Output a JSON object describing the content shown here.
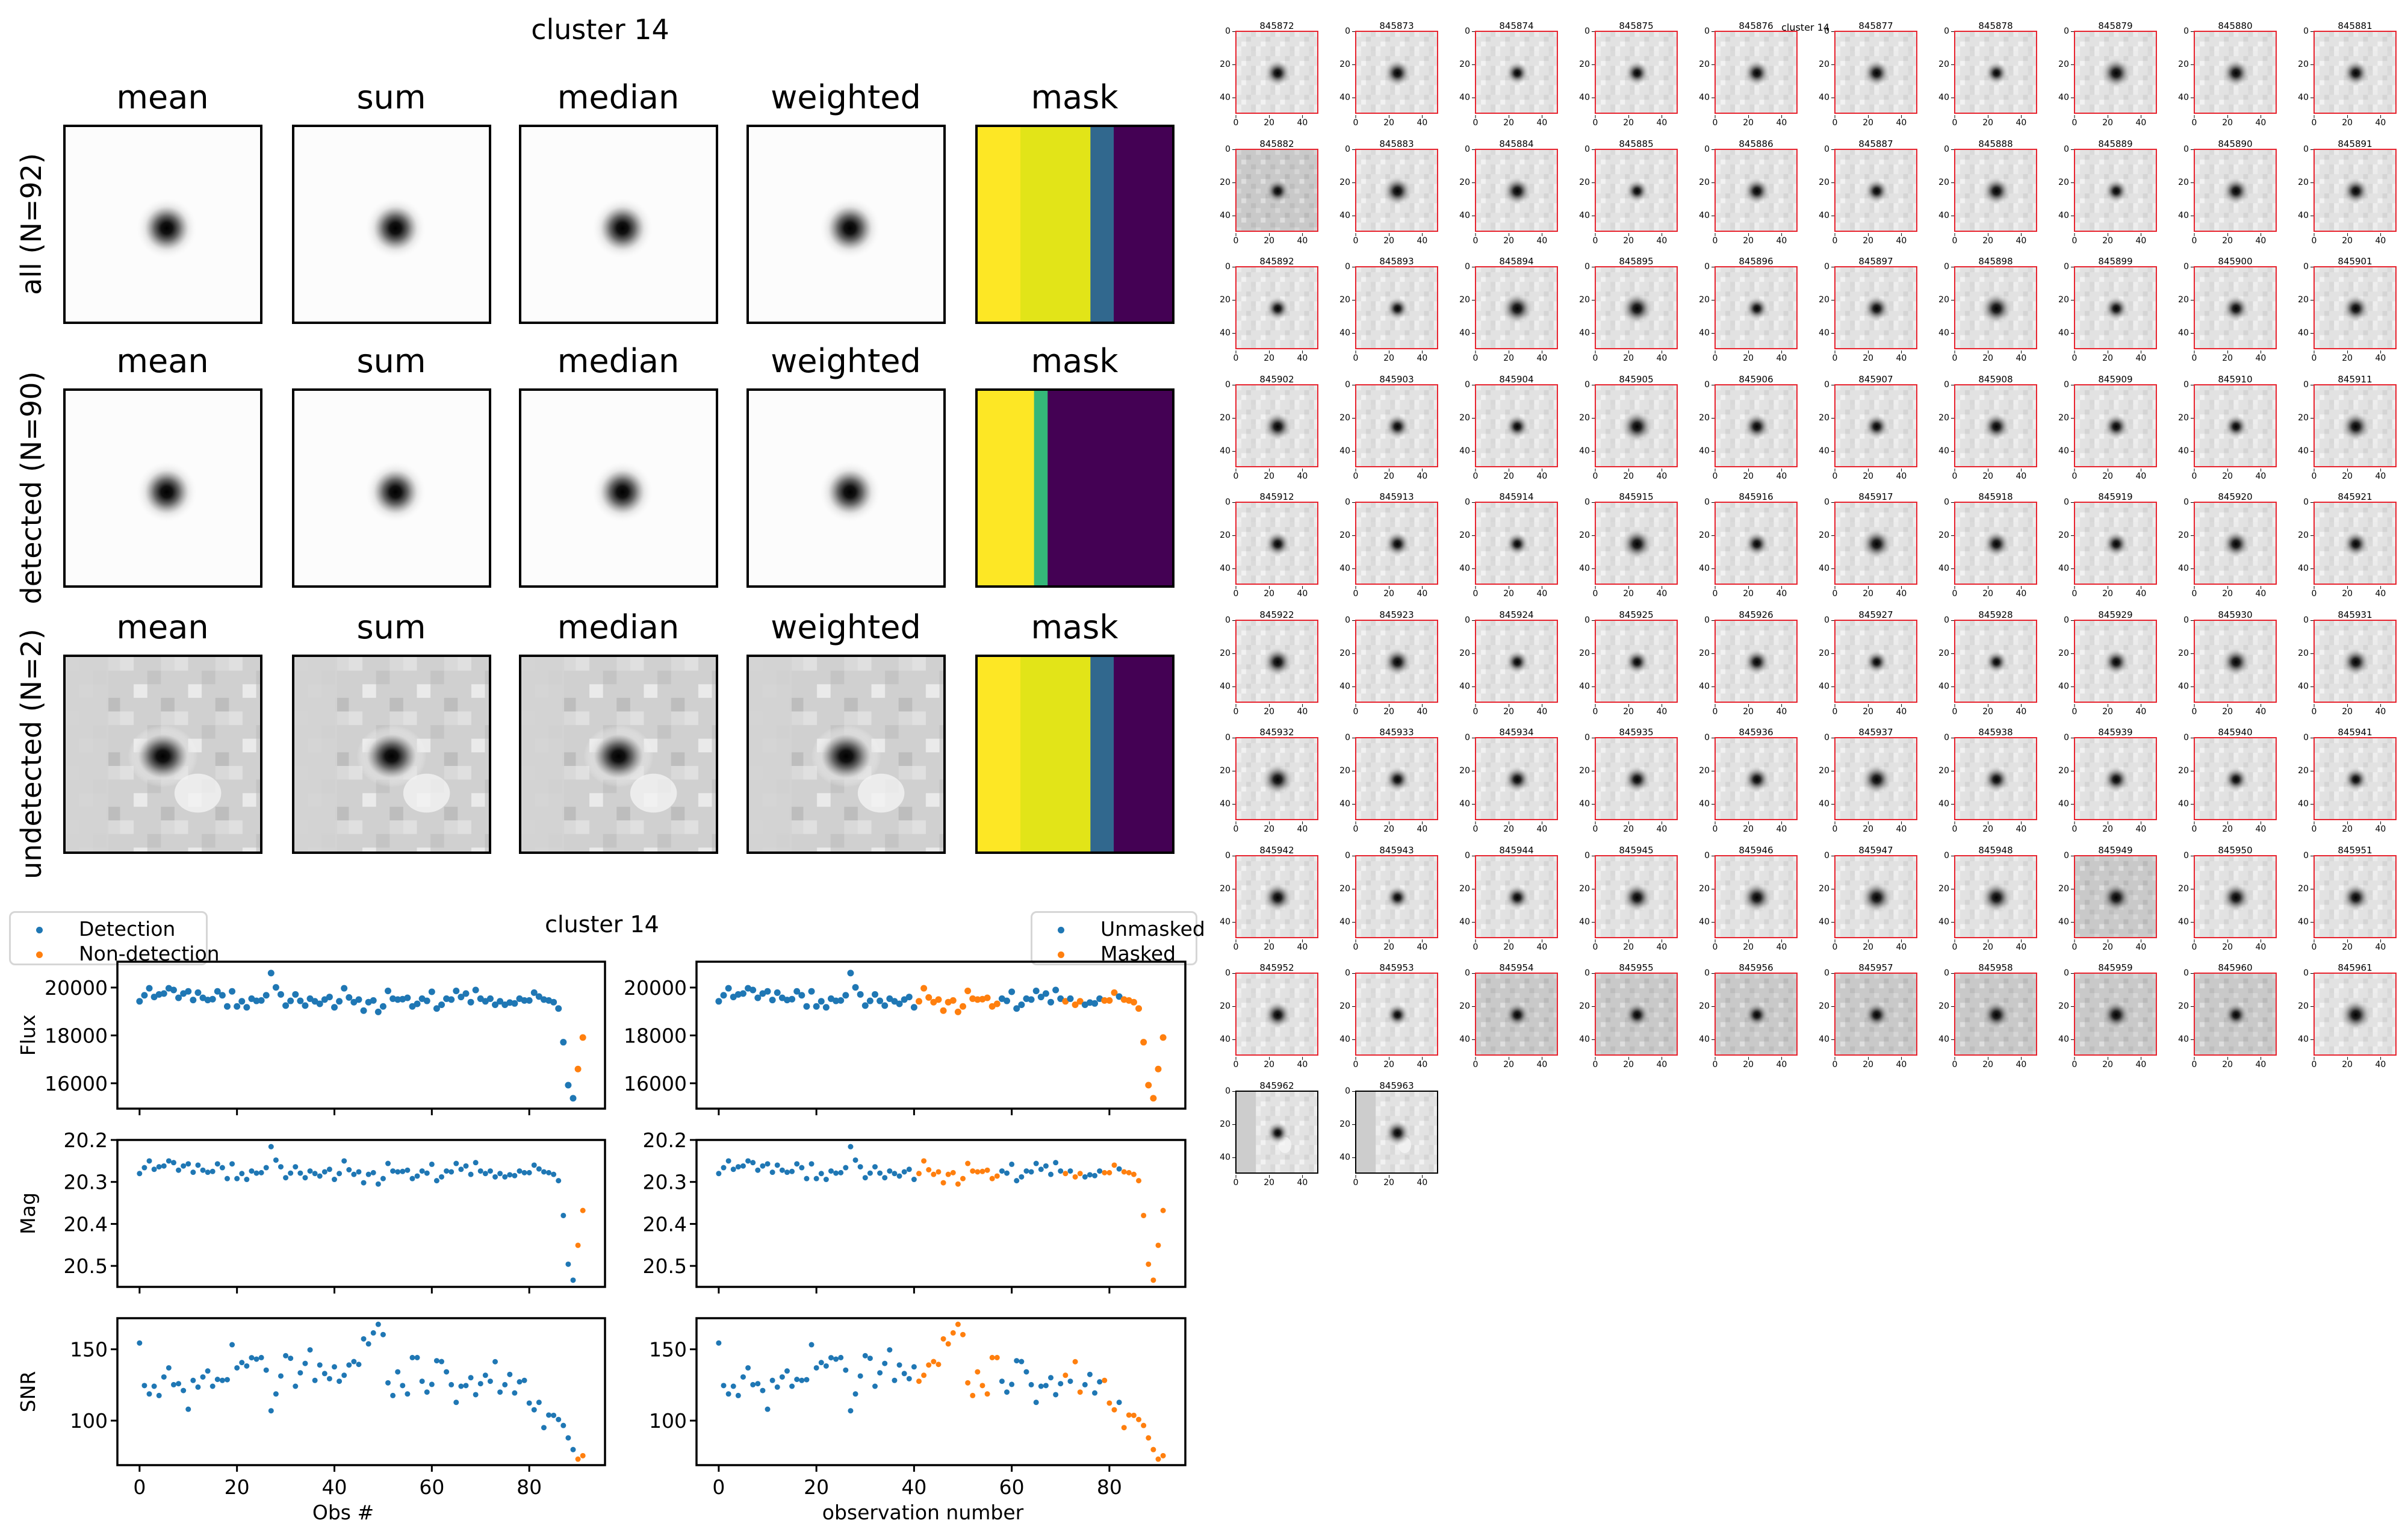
{
  "figure": {
    "left_title": "cluster 14",
    "thumb_suptitle": "cluster 14",
    "lightcurve_title": "cluster 14"
  },
  "stack_grid": {
    "columns": [
      "mean",
      "sum",
      "median",
      "weighted",
      "mask"
    ],
    "rows": [
      {
        "label": "all (N=92)",
        "style": "clean",
        "mask_bands": [
          {
            "to": 0.22,
            "color": "#fde725"
          },
          {
            "to": 0.58,
            "color": "#e2e418"
          },
          {
            "to": 0.7,
            "color": "#31688e"
          },
          {
            "to": 1.0,
            "color": "#440154"
          }
        ]
      },
      {
        "label": "detected (N=90)",
        "style": "clean",
        "mask_bands": [
          {
            "to": 0.29,
            "color": "#fde725"
          },
          {
            "to": 0.36,
            "color": "#35b779"
          },
          {
            "to": 1.0,
            "color": "#440154"
          }
        ]
      },
      {
        "label": "undetected (N=2)",
        "style": "noisy",
        "mask_bands": [
          {
            "to": 0.22,
            "color": "#fde725"
          },
          {
            "to": 0.58,
            "color": "#e2e418"
          },
          {
            "to": 0.7,
            "color": "#31688e"
          },
          {
            "to": 1.0,
            "color": "#440154"
          }
        ]
      }
    ]
  },
  "legends": {
    "left": [
      {
        "label": "Detection",
        "color": "#1f77b4"
      },
      {
        "label": "Non-detection",
        "color": "#ff7f0e"
      }
    ],
    "right": [
      {
        "label": "Unmasked",
        "color": "#1f77b4"
      },
      {
        "label": "Masked",
        "color": "#ff7f0e"
      }
    ]
  },
  "colors": {
    "blue": "#1f77b4",
    "orange": "#ff7f0e",
    "thumb_border": "#e8242f",
    "thumb_border_undetected": "#000000"
  },
  "thumbnails": {
    "first_id": 845872,
    "count": 92,
    "per_row": 10,
    "undetected_ids": [
      845962,
      845963
    ],
    "axis_ticks": [
      "0",
      "20",
      "40"
    ]
  },
  "chart_data": [
    {
      "type": "scatter",
      "panel": "flux-left",
      "ylabel": "Flux",
      "xlabel": "",
      "xlim": [
        -4.55,
        95.55
      ],
      "ylim": [
        14940,
        21080
      ],
      "yticks": [
        16000,
        18000,
        20000
      ],
      "xticks": [
        0,
        20,
        40,
        60,
        80
      ],
      "show_xticklabels": false,
      "errorbars": true,
      "color_by": "detection",
      "series_key": "flux"
    },
    {
      "type": "scatter",
      "panel": "mag-left",
      "ylabel": "Mag",
      "xlabel": "",
      "xlim": [
        -4.55,
        95.55
      ],
      "ylim": [
        20.55,
        20.2
      ],
      "inverted_y": true,
      "yticks": [
        20.2,
        20.3,
        20.4,
        20.5
      ],
      "xticks": [
        0,
        20,
        40,
        60,
        80
      ],
      "show_xticklabels": false,
      "color_by": "detection",
      "series_key": "mag"
    },
    {
      "type": "scatter",
      "panel": "snr-left",
      "ylabel": "SNR",
      "xlabel": "Obs #",
      "xlim": [
        -4.55,
        95.55
      ],
      "ylim": [
        68.8,
        171.8
      ],
      "yticks": [
        100,
        150
      ],
      "xticks": [
        0,
        20,
        40,
        60,
        80
      ],
      "show_xticklabels": true,
      "color_by": "detection",
      "series_key": "snr"
    },
    {
      "type": "scatter",
      "panel": "flux-right",
      "ylabel": "",
      "xlabel": "",
      "xlim": [
        -4.55,
        95.55
      ],
      "ylim": [
        14940,
        21080
      ],
      "yticks": [
        16000,
        18000,
        20000
      ],
      "xticks": [
        0,
        20,
        40,
        60,
        80
      ],
      "show_xticklabels": false,
      "errorbars": true,
      "color_by": "mask",
      "series_key": "flux"
    },
    {
      "type": "scatter",
      "panel": "mag-right",
      "ylabel": "",
      "xlabel": "",
      "xlim": [
        -4.55,
        95.55
      ],
      "ylim": [
        20.55,
        20.2
      ],
      "inverted_y": true,
      "yticks": [
        20.2,
        20.3,
        20.4,
        20.5
      ],
      "xticks": [
        0,
        20,
        40,
        60,
        80
      ],
      "show_xticklabels": false,
      "color_by": "mask",
      "series_key": "mag"
    },
    {
      "type": "scatter",
      "panel": "snr-right",
      "ylabel": "",
      "xlabel": "observation number",
      "xlim": [
        -4.55,
        95.55
      ],
      "ylim": [
        68.8,
        171.8
      ],
      "yticks": [
        100,
        150
      ],
      "xticks": [
        0,
        20,
        40,
        60,
        80
      ],
      "show_xticklabels": true,
      "color_by": "mask",
      "series_key": "snr"
    }
  ],
  "observations": {
    "mag": [
      20.28,
      20.266,
      20.25,
      20.27,
      20.264,
      20.262,
      20.25,
      20.254,
      20.272,
      20.262,
      20.257,
      20.277,
      20.26,
      20.272,
      20.277,
      20.275,
      20.257,
      20.266,
      20.292,
      20.257,
      20.292,
      20.28,
      20.294,
      20.274,
      20.279,
      20.278,
      20.266,
      20.216,
      20.248,
      20.264,
      20.29,
      20.279,
      20.264,
      20.279,
      20.29,
      20.274,
      20.28,
      20.286,
      20.276,
      20.27,
      20.294,
      20.28,
      20.25,
      20.271,
      20.282,
      20.276,
      20.302,
      20.282,
      20.278,
      20.305,
      20.292,
      20.256,
      20.274,
      20.276,
      20.275,
      20.272,
      20.292,
      20.286,
      20.274,
      20.279,
      20.258,
      20.297,
      20.288,
      20.274,
      20.276,
      20.256,
      20.27,
      20.262,
      20.282,
      20.254,
      20.274,
      20.28,
      20.274,
      20.288,
      20.28,
      20.288,
      20.283,
      20.285,
      20.274,
      20.278,
      20.278,
      20.26,
      20.269,
      20.276,
      20.278,
      20.282,
      20.297,
      20.38,
      20.496,
      20.534,
      20.451,
      20.368
    ],
    "flux": [
      19424,
      19678,
      19970,
      19606,
      19713,
      19750,
      19970,
      19897,
      19569,
      19750,
      19841,
      19478,
      19787,
      19569,
      19478,
      19515,
      19841,
      19678,
      19212,
      19841,
      19212,
      19424,
      19175,
      19534,
      19443,
      19461,
      19678,
      20605,
      20007,
      19713,
      19247,
      19443,
      19713,
      19443,
      19247,
      19534,
      19424,
      19319,
      19497,
      19606,
      19175,
      19424,
      19970,
      19587,
      19389,
      19497,
      19035,
      19389,
      19461,
      18983,
      19212,
      19860,
      19534,
      19497,
      19515,
      19569,
      19212,
      19319,
      19534,
      19443,
      19822,
      19123,
      19282,
      19534,
      19497,
      19860,
      19606,
      19750,
      19389,
      19897,
      19534,
      19424,
      19534,
      19282,
      19424,
      19282,
      19371,
      19336,
      19534,
      19461,
      19461,
      19787,
      19624,
      19497,
      19461,
      19389,
      19123,
      17716,
      15922,
      15373,
      16595,
      17912
    ],
    "flux_err": 90,
    "snr": [
      154.4,
      124.6,
      118.7,
      124.1,
      117.6,
      130.6,
      137.0,
      125.2,
      125.9,
      121.1,
      108.0,
      128.2,
      123.5,
      130.6,
      134.8,
      124.1,
      128.9,
      128.2,
      128.7,
      153.2,
      137.0,
      140.7,
      138.3,
      144.1,
      143.1,
      144.2,
      135.4,
      106.9,
      118.7,
      131.3,
      145.5,
      143.7,
      124.1,
      133.5,
      140.1,
      149.6,
      128.2,
      139.0,
      133.0,
      129.4,
      137.7,
      127.6,
      131.8,
      139.0,
      141.4,
      139.4,
      157.3,
      153.8,
      161.5,
      167.5,
      160.3,
      126.5,
      117.6,
      134.2,
      124.6,
      118.7,
      144.2,
      144.2,
      127.6,
      120.0,
      125.4,
      142.0,
      141.4,
      134.2,
      125.2,
      112.8,
      124.1,
      124.6,
      130.1,
      118.2,
      125.9,
      131.8,
      127.6,
      141.3,
      120.0,
      125.2,
      132.4,
      119.4,
      127.2,
      128.2,
      112.3,
      107.6,
      112.8,
      95.1,
      103.9,
      103.7,
      100.8,
      96.6,
      87.9,
      79.7,
      73.0,
      75.4
    ],
    "non_detection_indices": [
      90,
      91
    ],
    "masked_indices": [
      41,
      42,
      43,
      44,
      45,
      46,
      47,
      48,
      49,
      50,
      51,
      52,
      53,
      54,
      55,
      56,
      57,
      71,
      73,
      74,
      79,
      80,
      81,
      83,
      84,
      85,
      86,
      87,
      88,
      89,
      90,
      91
    ]
  }
}
